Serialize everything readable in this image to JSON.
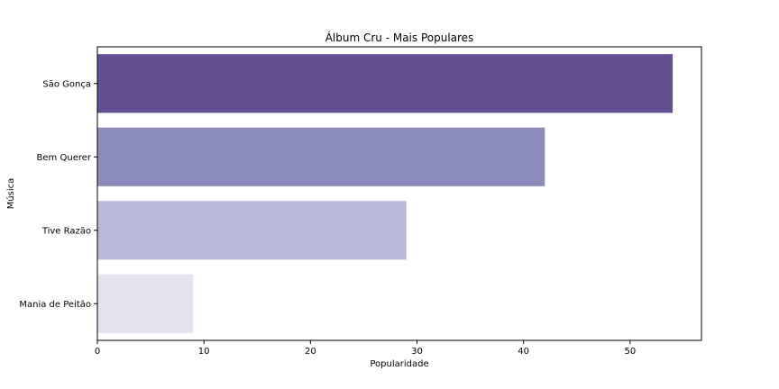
{
  "chart_data": {
    "type": "bar",
    "orientation": "horizontal",
    "title": "Álbum Cru - Mais Populares",
    "xlabel": "Popularidade",
    "ylabel": "Música",
    "categories": [
      "São Gonça",
      "Bem Querer",
      "Tive Razão",
      "Mania de Peitão"
    ],
    "values": [
      54,
      42,
      29,
      9
    ],
    "colors": [
      "#634f92",
      "#8c8cbb",
      "#b9b9d8",
      "#e4e2ef"
    ],
    "xlim": [
      0,
      56.7
    ],
    "xticks": [
      0,
      10,
      20,
      30,
      40,
      50
    ],
    "grid": false
  }
}
